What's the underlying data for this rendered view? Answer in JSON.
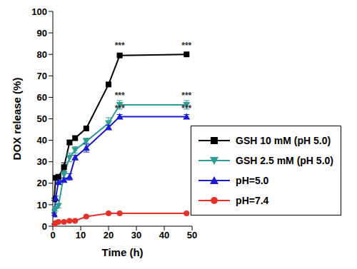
{
  "chart_data": {
    "type": "line",
    "x_label": "Time (h)",
    "y_label": "DOX release (%)",
    "x": [
      0.5,
      1,
      2,
      4,
      6,
      8,
      12,
      20,
      24,
      48
    ],
    "series": [
      {
        "name": "GSH 10 mM (pH 5.0)",
        "color": "#000000",
        "marker": "square",
        "values": [
          12.5,
          22.5,
          23,
          27.5,
          39,
          41,
          45.5,
          66,
          79.5,
          80
        ],
        "errors": [
          0.5,
          0.5,
          1,
          2,
          1,
          1,
          0.5,
          0.5,
          0.5,
          0.5
        ]
      },
      {
        "name": "GSH 2.5 mM (pH 5.0)",
        "color": "#2f9c95",
        "marker": "triangle-down",
        "values": [
          7,
          8,
          9.5,
          24,
          32,
          35.5,
          39.5,
          48,
          56.5,
          56.5
        ],
        "errors": [
          0.5,
          1,
          1,
          1.5,
          2,
          1.5,
          1.5,
          2.5,
          2,
          2
        ]
      },
      {
        "name": "pH=5.0",
        "color": "#1a1ad0",
        "marker": "triangle",
        "values": [
          5.5,
          13,
          20.5,
          21.5,
          23,
          32,
          36.5,
          46,
          51,
          51
        ],
        "errors": [
          0.5,
          1,
          1,
          1,
          1.5,
          1,
          2,
          1,
          1,
          1
        ]
      },
      {
        "name": "pH=7.4",
        "color": "#e8302a",
        "marker": "circle",
        "values": [
          1,
          1.5,
          2,
          2,
          2.5,
          2.5,
          4.5,
          6,
          6,
          6
        ],
        "errors": [
          0.2,
          0.2,
          0.2,
          0.2,
          0.3,
          0.3,
          0.3,
          0.3,
          0.3,
          0.3
        ]
      }
    ],
    "xlim": [
      0,
      50
    ],
    "xticks": [
      0,
      10,
      20,
      30,
      40,
      50
    ],
    "ylim": [
      0,
      100
    ],
    "yticks": [
      0,
      10,
      20,
      30,
      40,
      50,
      60,
      70,
      80,
      90,
      100
    ],
    "grid": false,
    "legend": "center right",
    "annotations": [
      {
        "text": "***",
        "x": 24,
        "y": 84
      },
      {
        "text": "***",
        "x": 48,
        "y": 84
      },
      {
        "text": "***",
        "x": 24,
        "y": 61
      },
      {
        "text": "***",
        "x": 48,
        "y": 61
      },
      {
        "text": "***",
        "x": 24,
        "y": 55
      },
      {
        "text": "***",
        "x": 48,
        "y": 55
      }
    ]
  }
}
